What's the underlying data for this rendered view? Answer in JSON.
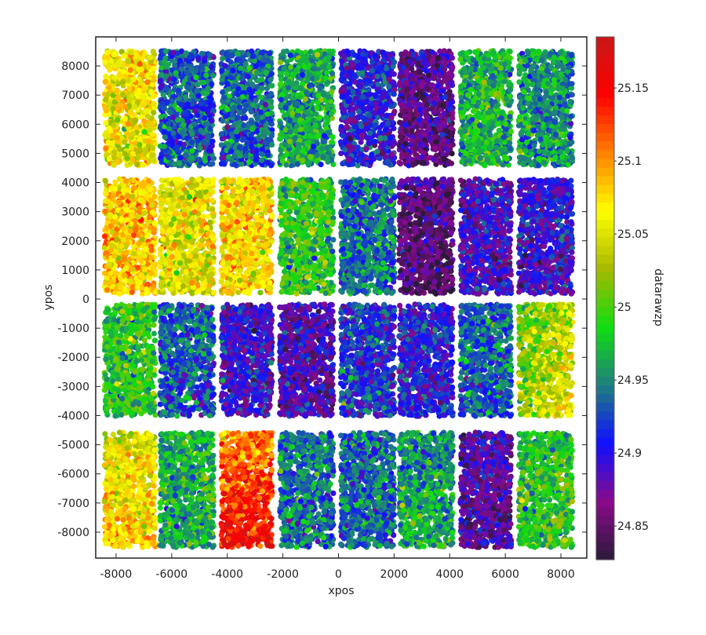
{
  "chart_data": {
    "type": "scatter",
    "title": "",
    "xlabel": "xpos",
    "ylabel": "ypos",
    "colorbar_label": "datarawzp",
    "xlim": [
      -8700,
      8700
    ],
    "ylim": [
      -8900,
      8900
    ],
    "x_ticks": [
      -8000,
      -6000,
      -4000,
      -2000,
      0,
      2000,
      4000,
      6000,
      8000
    ],
    "y_ticks": [
      8000,
      7000,
      6000,
      5000,
      4000,
      3000,
      2000,
      1000,
      0,
      -1000,
      -2000,
      -3000,
      -4000,
      -5000,
      -6000,
      -7000,
      -8000
    ],
    "colorbar_ticks": [
      25.15,
      25.1,
      25.05,
      25.0,
      24.95,
      24.9,
      24.85
    ],
    "colorbar_range": [
      24.827,
      25.185
    ],
    "colormap": [
      "#2a1a3a",
      "#8a0a8a",
      "#1010ff",
      "#1f7f7f",
      "#10dd10",
      "#a8b800",
      "#ffff00",
      "#ff8000",
      "#ff0000",
      "#c81818"
    ],
    "grid": false,
    "legend": "colorbar-right",
    "tile_columns_x": [
      [
        -8500,
        -6500
      ],
      [
        -6500,
        -4400
      ],
      [
        -4300,
        -2300
      ],
      [
        -2200,
        -100
      ],
      [
        0,
        2100
      ],
      [
        2100,
        4200
      ],
      [
        4300,
        6300
      ],
      [
        6400,
        8500
      ]
    ],
    "tile_rows_y": [
      [
        4500,
        8600
      ],
      [
        100,
        4200
      ],
      [
        -4100,
        -100
      ],
      [
        -8600,
        -4500
      ]
    ],
    "tile_mean_values": [
      [
        25.06,
        24.93,
        24.935,
        24.965,
        24.905,
        24.865,
        24.97,
        24.955
      ],
      [
        25.08,
        25.055,
        25.07,
        24.985,
        24.94,
        24.855,
        24.89,
        24.895
      ],
      [
        24.985,
        24.93,
        24.895,
        24.88,
        24.915,
        24.905,
        24.935,
        25.03
      ],
      [
        25.065,
        24.97,
        25.13,
        24.94,
        24.935,
        24.96,
        24.875,
        24.985
      ]
    ],
    "tile_gradients": [
      [
        0,
        0,
        0,
        0,
        0,
        -0.02,
        0,
        0
      ],
      [
        0,
        0,
        0,
        0,
        0,
        -0.02,
        0,
        0
      ],
      [
        0,
        0,
        0,
        0,
        0,
        0,
        0,
        0.04
      ],
      [
        0.03,
        0,
        0.06,
        0,
        0,
        0.02,
        -0.02,
        0.01
      ]
    ]
  }
}
